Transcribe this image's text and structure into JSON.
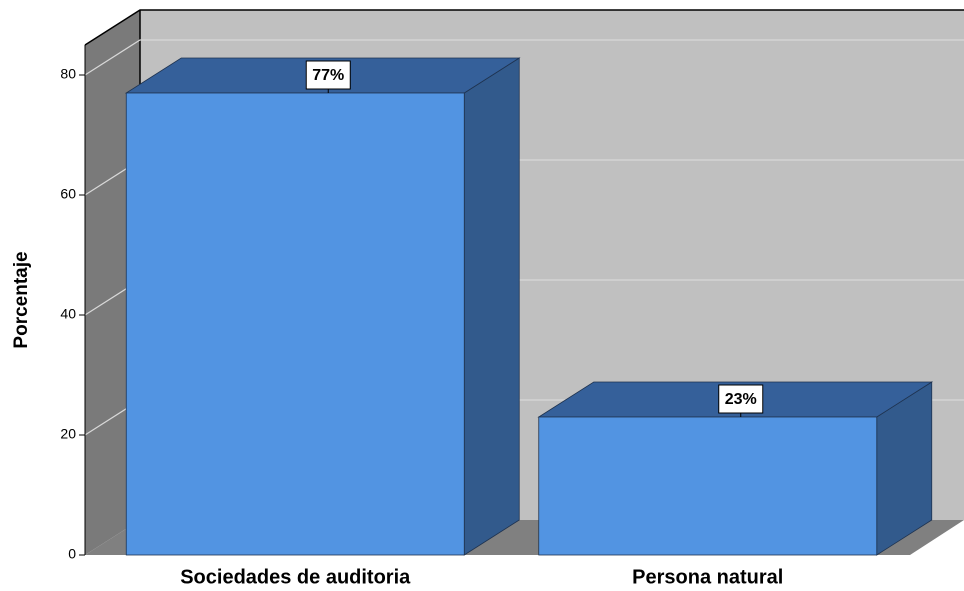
{
  "chart_data": {
    "type": "bar3d",
    "y_label": "Porcentaje",
    "categories": [
      "Sociedades de auditoria",
      "Persona natural"
    ],
    "values": [
      77,
      23
    ],
    "value_labels": [
      "77%",
      "23%"
    ],
    "color": "#5294e2",
    "ylim": [
      0,
      85
    ],
    "yticks": [
      0,
      20,
      40,
      60,
      80
    ],
    "grid": true
  }
}
